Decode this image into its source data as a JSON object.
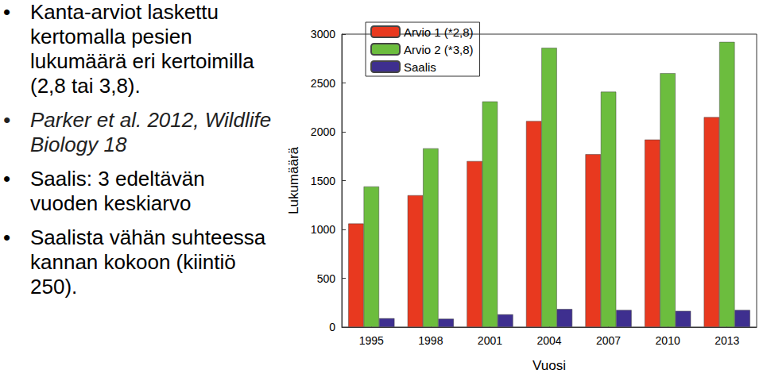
{
  "bullets": [
    "Kanta-arviot laskettu kertomalla pesien lukumäärä eri kertoimilla (2,8 tai 3,8).",
    "Parker et al. 2012, Wildlife Biology 18",
    "Saalis: 3 edeltävän vuoden keskiarvo",
    "Saalista vähän suhteessa kannan kokoon (kiintiö 250)."
  ],
  "chart_data": {
    "type": "bar",
    "xlabel": "Vuosi",
    "ylabel": "Lukumäärä",
    "categories": [
      "1995",
      "1998",
      "2001",
      "2004",
      "2007",
      "2010",
      "2013"
    ],
    "series": [
      {
        "name": "Arvio 1 (*2,8)",
        "color": "#e8391f",
        "values": [
          1060,
          1350,
          1700,
          2110,
          1770,
          1920,
          2150
        ]
      },
      {
        "name": "Arvio 2 (*3,8)",
        "color": "#6cbd3e",
        "values": [
          1440,
          1830,
          2310,
          2860,
          2410,
          2600,
          2920
        ]
      },
      {
        "name": "Saalis",
        "color": "#3e2f8f",
        "values": [
          90,
          85,
          130,
          185,
          175,
          165,
          175
        ]
      }
    ],
    "ylim": [
      0,
      3000
    ],
    "yticks": [
      0,
      500,
      1000,
      1500,
      2000,
      2500,
      3000
    ],
    "grid": false,
    "legend": "upper left"
  }
}
